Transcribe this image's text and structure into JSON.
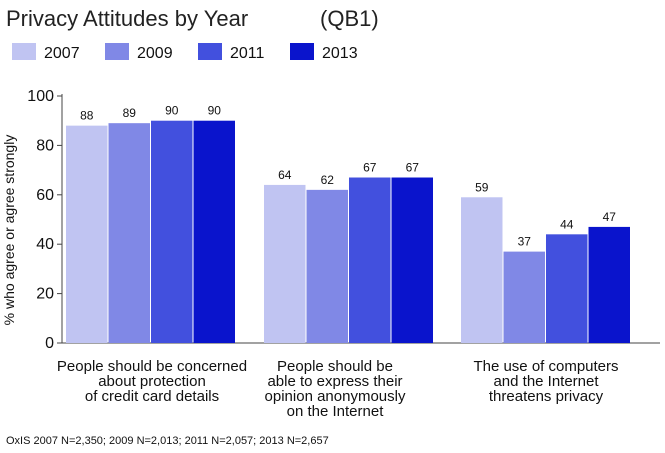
{
  "chart_data": {
    "type": "bar",
    "title": "Privacy Attitudes by Year",
    "subtitle": "(QB1)",
    "ylabel": "% who agree or agree strongly",
    "xlabel": "",
    "ylim": [
      0,
      100
    ],
    "yticks": [
      0,
      20,
      40,
      60,
      80,
      100
    ],
    "grid": false,
    "legend_position": "top-left",
    "categories": [
      [
        "People should be concerned",
        "about protection",
        "of credit card details"
      ],
      [
        "People should be",
        "able to express their",
        "opinion anonymously",
        "on the Internet"
      ],
      [
        "The use of computers",
        "and the Internet",
        "threatens privacy"
      ]
    ],
    "series": [
      {
        "name": "2007",
        "color": "#c0c4f2",
        "values": [
          88,
          64,
          59
        ]
      },
      {
        "name": "2009",
        "color": "#8088e6",
        "values": [
          89,
          62,
          37
        ]
      },
      {
        "name": "2011",
        "color": "#4250de",
        "values": [
          90,
          67,
          44
        ]
      },
      {
        "name": "2013",
        "color": "#0a14cc",
        "values": [
          90,
          67,
          47
        ]
      }
    ],
    "note": "OxIS 2007 N=2,350; 2009 N=2,013; 2011 N=2,057; 2013 N=2,657"
  }
}
